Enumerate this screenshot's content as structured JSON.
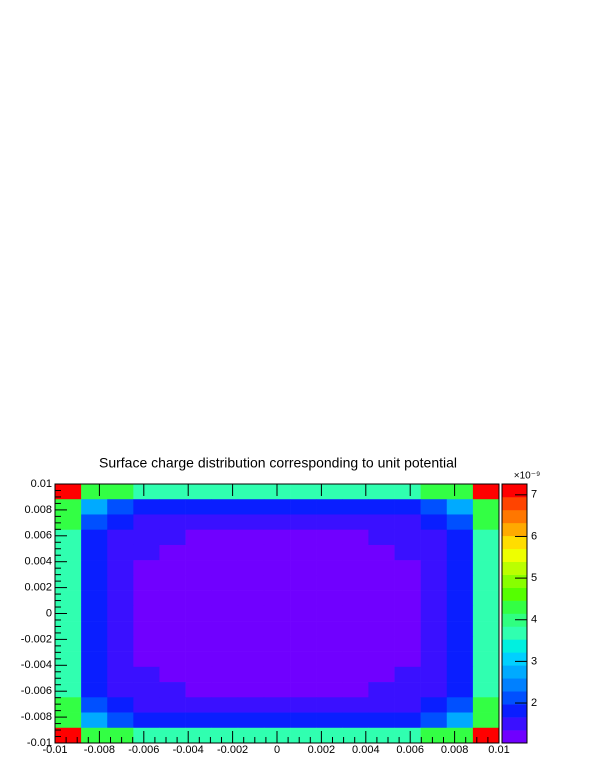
{
  "chart_data": {
    "type": "heatmap",
    "title": "Surface charge distribution corresponding to unit potential",
    "xlim": [
      -0.01,
      0.01
    ],
    "ylim": [
      -0.01,
      0.01
    ],
    "xticks": [
      -0.01,
      -0.008,
      -0.006,
      -0.004,
      -0.002,
      0,
      0.002,
      0.004,
      0.006,
      0.008,
      0.01
    ],
    "yticks": [
      -0.01,
      -0.008,
      -0.006,
      -0.004,
      -0.002,
      0,
      0.002,
      0.004,
      0.006,
      0.008,
      0.01
    ],
    "zlim": [
      1.04,
      7.26
    ],
    "zticks": [
      2,
      3,
      4,
      5,
      6,
      7
    ],
    "z_multiplier": "×10⁻⁹",
    "palette": [
      "#7000ff",
      "#3a10ff",
      "#0a1eff",
      "#0050ff",
      "#0080ff",
      "#00aaff",
      "#00d0ff",
      "#00f0e0",
      "#30ffb0",
      "#30ff80",
      "#33ff44",
      "#55ff00",
      "#88ff00",
      "#bbff00",
      "#eeff00",
      "#ffdd00",
      "#ffaa00",
      "#ff7700",
      "#ff4400",
      "#ff0000"
    ],
    "z": [
      [
        7.2,
        4.3,
        4.3,
        3.8,
        3.8,
        3.6,
        3.6,
        3.6,
        3.6,
        3.6,
        3.6,
        3.6,
        3.8,
        3.8,
        4.3,
        4.3,
        7.2
      ],
      [
        4.3,
        2.6,
        2.1,
        1.8,
        1.8,
        1.8,
        1.8,
        1.8,
        1.8,
        1.8,
        1.8,
        1.8,
        1.8,
        1.8,
        2.1,
        2.6,
        4.3
      ],
      [
        4.3,
        2.1,
        1.8,
        1.5,
        1.5,
        1.5,
        1.5,
        1.5,
        1.5,
        1.5,
        1.5,
        1.5,
        1.5,
        1.5,
        1.8,
        2.1,
        4.3
      ],
      [
        3.8,
        1.8,
        1.5,
        1.5,
        1.5,
        1.2,
        1.2,
        1.2,
        1.2,
        1.2,
        1.2,
        1.2,
        1.5,
        1.5,
        1.5,
        1.8,
        3.8
      ],
      [
        3.8,
        1.8,
        1.5,
        1.5,
        1.2,
        1.2,
        1.2,
        1.2,
        1.2,
        1.2,
        1.2,
        1.2,
        1.2,
        1.5,
        1.5,
        1.8,
        3.8
      ],
      [
        3.6,
        1.8,
        1.5,
        1.2,
        1.2,
        1.2,
        1.2,
        1.2,
        1.2,
        1.2,
        1.2,
        1.2,
        1.2,
        1.2,
        1.5,
        1.8,
        3.6
      ],
      [
        3.6,
        1.8,
        1.5,
        1.2,
        1.2,
        1.2,
        1.2,
        1.2,
        1.2,
        1.2,
        1.2,
        1.2,
        1.2,
        1.2,
        1.5,
        1.8,
        3.6
      ],
      [
        3.6,
        1.8,
        1.5,
        1.2,
        1.2,
        1.2,
        1.2,
        1.2,
        1.2,
        1.2,
        1.2,
        1.2,
        1.2,
        1.2,
        1.5,
        1.8,
        3.6
      ],
      [
        3.6,
        1.8,
        1.5,
        1.2,
        1.2,
        1.2,
        1.2,
        1.2,
        1.2,
        1.2,
        1.2,
        1.2,
        1.2,
        1.2,
        1.5,
        1.8,
        3.6
      ],
      [
        3.6,
        1.8,
        1.5,
        1.2,
        1.2,
        1.2,
        1.2,
        1.2,
        1.2,
        1.2,
        1.2,
        1.2,
        1.2,
        1.2,
        1.5,
        1.8,
        3.6
      ],
      [
        3.6,
        1.8,
        1.5,
        1.2,
        1.2,
        1.2,
        1.2,
        1.2,
        1.2,
        1.2,
        1.2,
        1.2,
        1.2,
        1.2,
        1.5,
        1.8,
        3.6
      ],
      [
        3.6,
        1.8,
        1.5,
        1.2,
        1.2,
        1.2,
        1.2,
        1.2,
        1.2,
        1.2,
        1.2,
        1.2,
        1.2,
        1.2,
        1.5,
        1.8,
        3.6
      ],
      [
        3.8,
        1.8,
        1.5,
        1.5,
        1.2,
        1.2,
        1.2,
        1.2,
        1.2,
        1.2,
        1.2,
        1.2,
        1.2,
        1.5,
        1.5,
        1.8,
        3.8
      ],
      [
        3.8,
        1.8,
        1.5,
        1.5,
        1.5,
        1.2,
        1.2,
        1.2,
        1.2,
        1.2,
        1.2,
        1.2,
        1.5,
        1.5,
        1.5,
        1.8,
        3.8
      ],
      [
        4.3,
        2.1,
        1.8,
        1.5,
        1.5,
        1.5,
        1.5,
        1.5,
        1.5,
        1.5,
        1.5,
        1.5,
        1.5,
        1.5,
        1.8,
        2.1,
        4.3
      ],
      [
        4.3,
        2.6,
        2.1,
        1.8,
        1.8,
        1.8,
        1.8,
        1.8,
        1.8,
        1.8,
        1.8,
        1.8,
        1.8,
        1.8,
        2.1,
        2.6,
        4.3
      ],
      [
        7.2,
        4.3,
        4.3,
        3.8,
        3.8,
        3.6,
        3.6,
        3.6,
        3.6,
        3.6,
        3.6,
        3.6,
        3.8,
        3.8,
        4.3,
        4.3,
        7.2
      ]
    ]
  }
}
